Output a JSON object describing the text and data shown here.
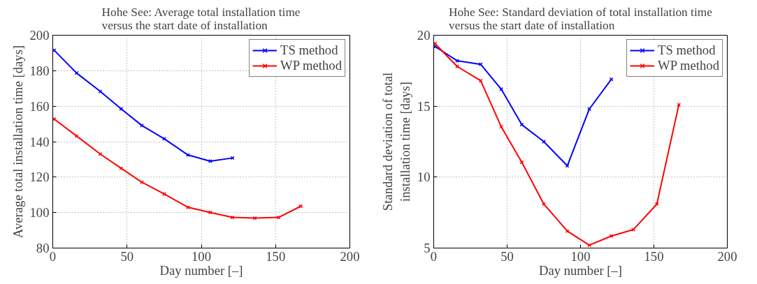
{
  "chart_data": [
    {
      "type": "line",
      "title": "Hohe See: Average total installation time\nversus the start date of installation",
      "xlabel": "Day number [–]",
      "ylabel": "Average total installation time [days]",
      "x": [
        1,
        16,
        32,
        46,
        60,
        75,
        91,
        106,
        121,
        136,
        152,
        167
      ],
      "series": [
        {
          "name": "TS method",
          "color": "#0000ff",
          "values": [
            191.5,
            178.7,
            168.3,
            158.5,
            149.1,
            141.6,
            132.5,
            129,
            130.8,
            null,
            null,
            null
          ]
        },
        {
          "name": "WP method",
          "color": "#ff0000",
          "values": [
            152.7,
            143.2,
            133,
            125,
            117.1,
            110.5,
            103,
            100.1,
            97.3,
            96.9,
            97.3,
            103.6
          ]
        }
      ],
      "xlim": [
        0,
        200
      ],
      "xticks": [
        0,
        50,
        100,
        150,
        200
      ],
      "ylim": [
        80,
        200
      ],
      "yticks": [
        80,
        100,
        120,
        140,
        160,
        180,
        200
      ],
      "grid": true,
      "legend": "top right",
      "marker": "cross",
      "line_style": "solid"
    },
    {
      "type": "line",
      "title": "Hohe See: Standard deviation of total installation time\nversus the start date of installation",
      "xlabel": "Day number [–]",
      "ylabel": "Standard deviation of total\ninstallation time [days]",
      "x": [
        1,
        16,
        32,
        46,
        60,
        75,
        91,
        106,
        121,
        136,
        152,
        167
      ],
      "series": [
        {
          "name": "TS method",
          "color": "#0000ff",
          "values": [
            19.2,
            18.2,
            17.95,
            16.2,
            13.7,
            12.5,
            10.8,
            14.8,
            16.9,
            null,
            null,
            null
          ]
        },
        {
          "name": "WP method",
          "color": "#ff0000",
          "values": [
            19.4,
            17.8,
            16.8,
            13.55,
            11.05,
            8.1,
            6.2,
            5.2,
            5.85,
            6.3,
            8.1,
            15.1
          ]
        }
      ],
      "xlim": [
        0,
        200
      ],
      "xticks": [
        0,
        50,
        100,
        150,
        200
      ],
      "ylim": [
        5,
        20
      ],
      "yticks": [
        5,
        10,
        15,
        20
      ],
      "grid": true,
      "legend": "top right",
      "marker": "cross",
      "line_style": "solid"
    }
  ]
}
